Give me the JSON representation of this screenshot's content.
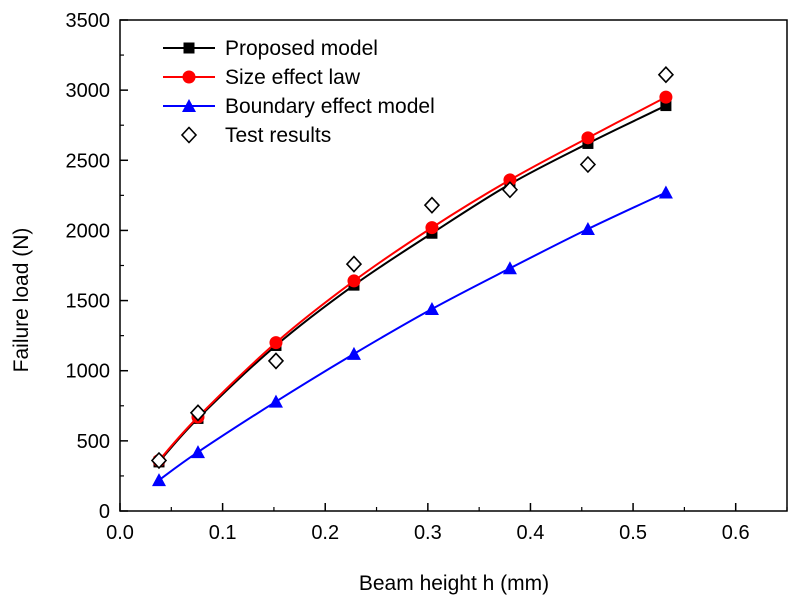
{
  "chart_data": {
    "type": "line",
    "xlabel": "Beam height h (mm)",
    "ylabel": "Failure load (N)",
    "xlim": [
      0.0,
      0.65
    ],
    "ylim": [
      0,
      3500
    ],
    "x_ticks": [
      "0.0",
      "0.1",
      "0.2",
      "0.3",
      "0.4",
      "0.5",
      "0.6"
    ],
    "y_ticks": [
      "0",
      "500",
      "1000",
      "1500",
      "2000",
      "2500",
      "3000",
      "3500"
    ],
    "legend_position": "top-left",
    "grid": false,
    "series": [
      {
        "name": "Proposed model",
        "color": "#000000",
        "marker": "square",
        "line": true,
        "x": [
          0.038,
          0.076,
          0.152,
          0.228,
          0.304,
          0.38,
          0.456,
          0.532
        ],
        "values": [
          350,
          660,
          1180,
          1610,
          1980,
          2330,
          2620,
          2890
        ]
      },
      {
        "name": "Size effect law",
        "color": "#ff0000",
        "marker": "circle",
        "line": true,
        "x": [
          0.038,
          0.076,
          0.152,
          0.228,
          0.304,
          0.38,
          0.456,
          0.532
        ],
        "values": [
          360,
          670,
          1200,
          1640,
          2020,
          2360,
          2660,
          2950
        ]
      },
      {
        "name": "Boundary effect model",
        "color": "#0000ff",
        "marker": "triangle",
        "line": true,
        "x": [
          0.038,
          0.076,
          0.152,
          0.228,
          0.304,
          0.38,
          0.456,
          0.532
        ],
        "values": [
          220,
          420,
          780,
          1120,
          1440,
          1730,
          2010,
          2270
        ]
      },
      {
        "name": "Test results",
        "color": "#000000",
        "marker": "diamond-open",
        "line": false,
        "x": [
          0.038,
          0.076,
          0.152,
          0.228,
          0.304,
          0.38,
          0.456,
          0.532
        ],
        "values": [
          360,
          700,
          1070,
          1760,
          2180,
          2290,
          2470,
          3110
        ]
      }
    ]
  }
}
